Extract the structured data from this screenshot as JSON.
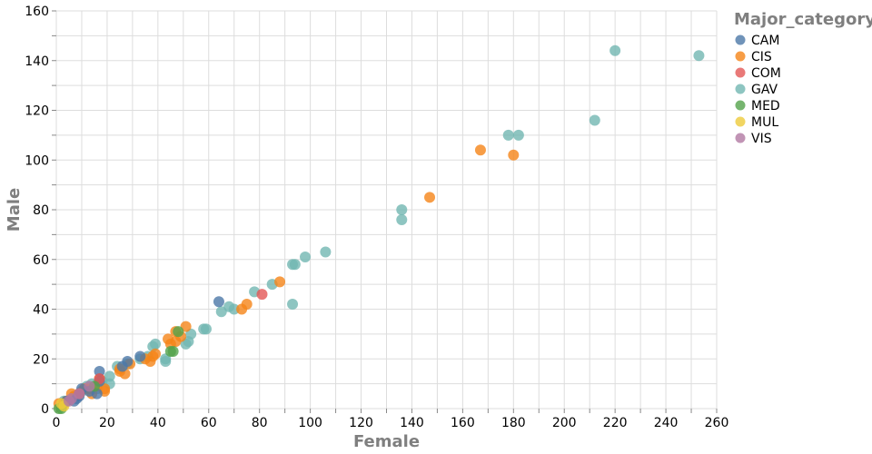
{
  "colors": {
    "CAM": "#4c78a8",
    "CIS": "#f58518",
    "COM": "#e45756",
    "GAV": "#72b7b2",
    "MED": "#54a24b",
    "MUL": "#eeca3b",
    "VIS": "#b279a2"
  },
  "chart_data": {
    "type": "scatter",
    "title": "",
    "xlabel": "Female",
    "ylabel": "Male",
    "xlim": [
      0,
      260
    ],
    "ylim": [
      0,
      160
    ],
    "xticks": [
      0,
      20,
      40,
      60,
      80,
      100,
      120,
      140,
      160,
      180,
      200,
      220,
      240,
      260
    ],
    "yticks": [
      0,
      20,
      40,
      60,
      80,
      100,
      120,
      140,
      160
    ],
    "grid": true,
    "legend": {
      "title": "Major_category",
      "position": "right",
      "items": [
        "CAM",
        "CIS",
        "COM",
        "GAV",
        "MED",
        "MUL",
        "VIS"
      ]
    },
    "series": [
      {
        "name": "GAV",
        "points": [
          [
            220,
            144
          ],
          [
            253,
            142
          ],
          [
            212,
            116
          ],
          [
            178,
            110
          ],
          [
            182,
            110
          ],
          [
            136,
            80
          ],
          [
            136,
            76
          ],
          [
            106,
            63
          ],
          [
            98,
            61
          ],
          [
            93,
            58
          ],
          [
            94,
            58
          ],
          [
            85,
            50
          ],
          [
            78,
            47
          ],
          [
            93,
            42
          ],
          [
            70,
            40
          ],
          [
            65,
            39
          ],
          [
            68,
            41
          ],
          [
            58,
            32
          ],
          [
            59,
            32
          ],
          [
            53,
            30
          ],
          [
            52,
            27
          ],
          [
            51,
            26
          ],
          [
            39,
            26
          ],
          [
            38,
            25
          ],
          [
            43,
            20
          ],
          [
            43,
            19
          ],
          [
            36,
            21
          ],
          [
            33,
            20
          ],
          [
            28,
            18
          ],
          [
            24,
            17
          ],
          [
            21,
            13
          ],
          [
            21,
            10
          ],
          [
            18,
            11
          ],
          [
            16,
            8
          ],
          [
            14,
            10
          ],
          [
            12,
            9
          ],
          [
            10,
            7
          ],
          [
            7,
            5
          ],
          [
            3,
            3
          ]
        ]
      },
      {
        "name": "CIS",
        "points": [
          [
            167,
            104
          ],
          [
            180,
            102
          ],
          [
            147,
            85
          ],
          [
            88,
            51
          ],
          [
            75,
            42
          ],
          [
            73,
            40
          ],
          [
            51,
            33
          ],
          [
            47,
            31
          ],
          [
            49,
            29
          ],
          [
            47,
            27
          ],
          [
            44,
            28
          ],
          [
            45,
            26
          ],
          [
            38,
            21
          ],
          [
            37,
            19
          ],
          [
            39,
            22
          ],
          [
            35,
            20
          ],
          [
            29,
            18
          ],
          [
            25,
            16
          ],
          [
            25,
            15
          ],
          [
            27,
            14
          ],
          [
            19,
            8
          ],
          [
            19,
            7
          ],
          [
            17,
            12
          ],
          [
            16,
            9
          ],
          [
            14,
            6
          ],
          [
            13,
            8
          ],
          [
            11,
            8
          ],
          [
            9,
            6
          ],
          [
            7,
            5
          ],
          [
            6,
            6
          ],
          [
            4,
            3
          ],
          [
            3,
            2
          ],
          [
            1,
            2
          ]
        ]
      },
      {
        "name": "CAM",
        "points": [
          [
            64,
            43
          ],
          [
            33,
            21
          ],
          [
            28,
            19
          ],
          [
            26,
            17
          ],
          [
            17,
            15
          ],
          [
            17,
            11
          ],
          [
            16,
            6
          ],
          [
            13,
            7
          ],
          [
            10,
            8
          ],
          [
            9,
            5
          ],
          [
            8,
            4
          ],
          [
            7,
            3
          ],
          [
            4,
            3
          ]
        ]
      },
      {
        "name": "COM",
        "points": [
          [
            81,
            46
          ],
          [
            17,
            12
          ],
          [
            9,
            6
          ]
        ]
      },
      {
        "name": "MED",
        "points": [
          [
            48,
            31
          ],
          [
            46,
            23
          ],
          [
            45,
            23
          ],
          [
            15,
            9
          ],
          [
            2,
            0
          ],
          [
            1,
            0
          ]
        ]
      },
      {
        "name": "MUL",
        "points": [
          [
            3,
            1
          ],
          [
            2,
            2
          ]
        ]
      },
      {
        "name": "VIS",
        "points": [
          [
            5,
            3
          ],
          [
            9,
            6
          ],
          [
            13,
            9
          ],
          [
            6,
            4
          ]
        ]
      }
    ]
  }
}
